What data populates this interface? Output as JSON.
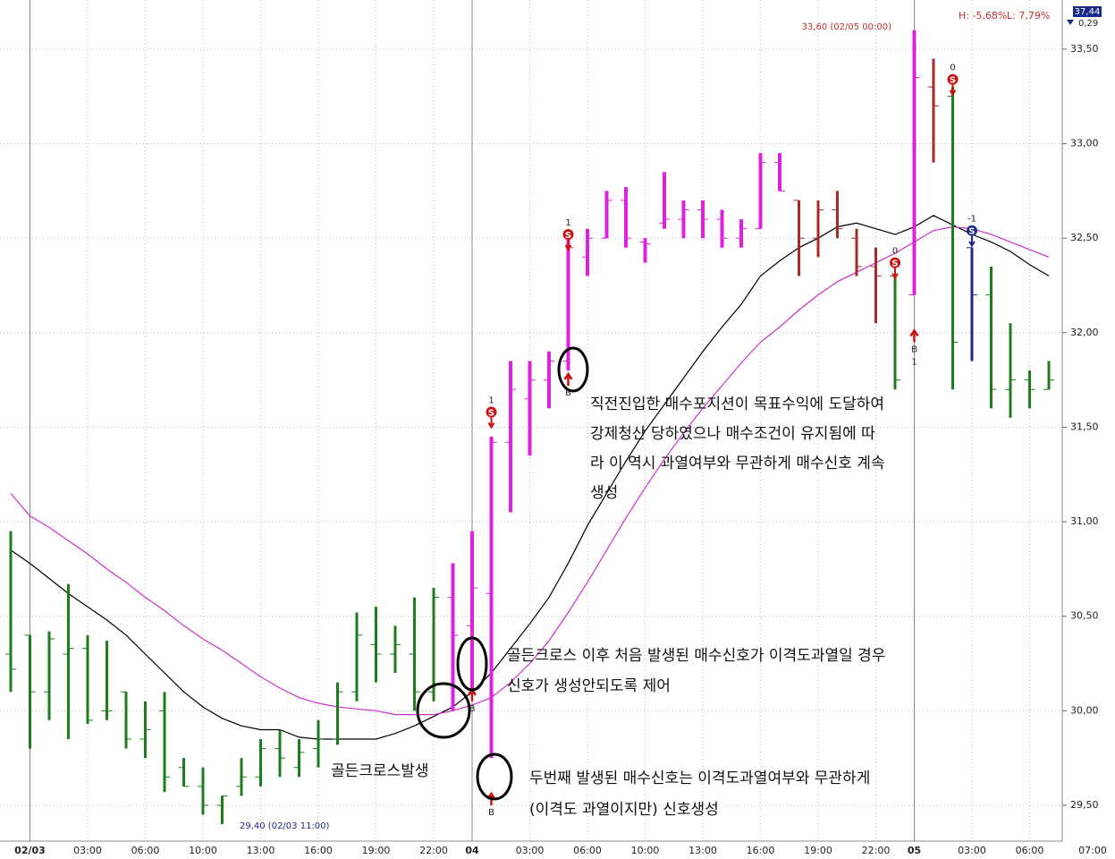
{
  "chart_data": {
    "type": "ohlc",
    "categories": [
      null,
      "02/03",
      null,
      null,
      "03:00",
      null,
      null,
      "06:00",
      null,
      null,
      "10:00",
      null,
      null,
      "13:00",
      null,
      null,
      "16:00",
      null,
      null,
      "19:00",
      null,
      null,
      "22:00",
      null,
      "04",
      null,
      null,
      "03:00",
      null,
      null,
      "06:00",
      null,
      null,
      "10:00",
      null,
      null,
      "13:00",
      null,
      null,
      "16:00",
      null,
      null,
      "19:00",
      null,
      null,
      "22:00",
      null,
      "05",
      null,
      null,
      "03:00",
      null,
      null,
      "06:00",
      null
    ],
    "x_end_label": "07:00",
    "open": [
      30.3,
      30.4,
      30.1,
      30.3,
      30.33,
      30.0,
      30.1,
      29.85,
      30.0,
      29.7,
      29.6,
      29.5,
      29.6,
      29.65,
      29.8,
      29.7,
      29.8,
      29.85,
      30.1,
      30.35,
      30.3,
      30.3,
      30.1,
      30.6,
      30.45,
      30.62,
      31.42,
      31.65,
      31.75,
      31.85,
      32.4,
      32.5,
      32.7,
      32.48,
      32.58,
      32.6,
      32.65,
      32.6,
      32.5,
      32.55,
      32.9,
      32.7,
      32.5,
      32.65,
      32.5,
      32.35,
      32.3,
      32.2,
      33.3,
      33.25,
      32.45,
      32.2,
      31.7,
      31.75,
      31.7
    ],
    "high": [
      30.95,
      30.4,
      30.42,
      30.67,
      30.4,
      30.37,
      30.1,
      30.05,
      30.1,
      29.75,
      29.7,
      29.55,
      29.75,
      29.85,
      29.9,
      29.85,
      29.95,
      30.15,
      30.52,
      30.55,
      30.45,
      30.6,
      30.65,
      30.78,
      30.95,
      31.45,
      31.85,
      31.85,
      31.9,
      32.5,
      32.55,
      32.75,
      32.77,
      32.5,
      32.85,
      32.7,
      32.7,
      32.65,
      32.6,
      32.95,
      32.95,
      32.7,
      32.7,
      32.75,
      32.55,
      32.45,
      32.3,
      33.6,
      33.45,
      33.3,
      32.45,
      32.35,
      32.05,
      31.8,
      31.85
    ],
    "low": [
      30.1,
      29.8,
      29.95,
      29.85,
      29.93,
      29.95,
      29.8,
      29.75,
      29.57,
      29.6,
      29.45,
      29.4,
      29.55,
      29.6,
      29.65,
      29.65,
      29.7,
      29.82,
      30.05,
      30.15,
      30.2,
      30.0,
      30.05,
      30.0,
      30.1,
      29.75,
      31.05,
      31.35,
      31.6,
      31.8,
      32.3,
      32.5,
      32.45,
      32.37,
      32.55,
      32.5,
      32.5,
      32.45,
      32.45,
      32.55,
      32.75,
      32.3,
      32.4,
      32.5,
      32.3,
      32.05,
      31.7,
      32.2,
      32.9,
      31.7,
      31.85,
      31.6,
      31.55,
      31.6,
      31.7
    ],
    "close": [
      30.22,
      30.1,
      30.38,
      30.33,
      29.95,
      30.0,
      29.85,
      29.9,
      29.65,
      29.6,
      29.5,
      29.55,
      29.65,
      29.8,
      29.75,
      29.78,
      29.85,
      30.1,
      30.4,
      30.3,
      30.35,
      30.1,
      30.6,
      30.4,
      30.65,
      31.42,
      31.7,
      31.75,
      31.85,
      32.45,
      32.5,
      32.7,
      32.5,
      32.47,
      32.6,
      32.65,
      32.6,
      32.5,
      32.55,
      32.9,
      32.75,
      32.5,
      32.65,
      32.55,
      32.35,
      32.3,
      31.75,
      33.35,
      33.2,
      31.95,
      32.2,
      31.7,
      31.75,
      31.7,
      31.75
    ],
    "colors": [
      "#1b7d1b",
      "#1b7d1b",
      "#1b7d1b",
      "#1b7d1b",
      "#1b7d1b",
      "#1b7d1b",
      "#1b7d1b",
      "#1b7d1b",
      "#1b7d1b",
      "#1b7d1b",
      "#1b7d1b",
      "#1b7d1b",
      "#1b7d1b",
      "#1b7d1b",
      "#1b7d1b",
      "#1b7d1b",
      "#1b7d1b",
      "#1b7d1b",
      "#1b7d1b",
      "#1b7d1b",
      "#1b7d1b",
      "#1b7d1b",
      "#1b7d1b",
      "#e020e0",
      "#e020e0",
      "#e020e0",
      "#e020e0",
      "#e020e0",
      "#e020e0",
      "#e020e0",
      "#e020e0",
      "#e020e0",
      "#e020e0",
      "#e020e0",
      "#e020e0",
      "#e020e0",
      "#e020e0",
      "#e020e0",
      "#e020e0",
      "#e020e0",
      "#e020e0",
      "#a52a2a",
      "#a52a2a",
      "#a52a2a",
      "#a52a2a",
      "#a52a2a",
      "#1b7d1b",
      "#e020e0",
      "#a52a2a",
      "#1b7d1b",
      "#1a2a8a",
      "#1b7d1b",
      "#1b7d1b",
      "#1b7d1b",
      "#1b7d1b"
    ],
    "series": [
      {
        "color": "#000000",
        "values": [
          30.85,
          30.78,
          30.7,
          30.62,
          30.55,
          30.48,
          30.4,
          30.3,
          30.2,
          30.1,
          30.02,
          29.96,
          29.92,
          29.9,
          29.9,
          29.86,
          29.85,
          29.85,
          29.85,
          29.85,
          29.88,
          29.92,
          29.97,
          30.02,
          30.1,
          30.2,
          30.33,
          30.46,
          30.6,
          30.78,
          30.98,
          31.15,
          31.32,
          31.48,
          31.62,
          31.76,
          31.9,
          32.03,
          32.15,
          32.3,
          32.38,
          32.45,
          32.5,
          32.56,
          32.58,
          32.55,
          32.52,
          32.56,
          32.62,
          32.57,
          32.52,
          32.48,
          32.43,
          32.36,
          32.3
        ]
      },
      {
        "color": "#d030d0",
        "values": [
          31.15,
          31.03,
          30.97,
          30.9,
          30.83,
          30.75,
          30.68,
          30.6,
          30.53,
          30.45,
          30.38,
          30.32,
          30.25,
          30.18,
          30.12,
          30.07,
          30.04,
          30.02,
          30.01,
          30.0,
          29.98,
          29.98,
          29.98,
          30.0,
          30.03,
          30.07,
          30.15,
          30.25,
          30.37,
          30.52,
          30.68,
          30.85,
          31.02,
          31.18,
          31.33,
          31.47,
          31.6,
          31.72,
          31.84,
          31.95,
          32.03,
          32.12,
          32.2,
          32.27,
          32.32,
          32.37,
          32.42,
          32.48,
          32.54,
          32.56,
          32.55,
          32.52,
          32.48,
          32.44,
          32.4
        ]
      }
    ],
    "signals": [
      {
        "index": 24,
        "side": "B",
        "price": 30.05
      },
      {
        "index": 25,
        "side": "S",
        "label": "1",
        "price": 31.58
      },
      {
        "index": 25,
        "side": "B",
        "price": 29.5
      },
      {
        "index": 29,
        "side": "S",
        "label": "1",
        "price": 32.52
      },
      {
        "index": 29,
        "side": "B",
        "price": 31.72
      },
      {
        "index": 46,
        "side": "S",
        "label": "0",
        "price": 32.37
      },
      {
        "index": 47,
        "side": "B",
        "label": "1",
        "price": 31.95
      },
      {
        "index": 49,
        "side": "S",
        "label": "0",
        "price": 33.34
      },
      {
        "index": 50,
        "side": "S",
        "label": "-1",
        "price": 32.54,
        "color": "#1a2a8a"
      }
    ],
    "ylim": [
      29.32,
      33.76
    ],
    "yticks": [
      {
        "value": 29.5,
        "label": "29,50"
      },
      {
        "value": 30.0,
        "label": "30,00"
      },
      {
        "value": 30.5,
        "label": "30,50"
      },
      {
        "value": 31.0,
        "label": "31,00"
      },
      {
        "value": 31.5,
        "label": "31,50"
      },
      {
        "value": 32.0,
        "label": "32,00"
      },
      {
        "value": 32.5,
        "label": "32,50"
      },
      {
        "value": 33.0,
        "label": "33,00"
      },
      {
        "value": 33.5,
        "label": "33,50"
      }
    ],
    "grid": true,
    "high_label": "33,60 (02/05 00:00)",
    "low_label": "29,40 (02/03 11:00)",
    "stats": {
      "h": "H: -5,68%",
      "l": "L: 7,79%",
      "axis_top": "37,44",
      "axis_change": "0,29"
    },
    "annotations": {
      "target": [
        "직전진입한 매수포지션이 목표수익에 도달하여",
        "강제청산 당하였으나 매수조건이 유지됨에 따",
        "라 이 역시 과열여부와 무관하게 매수신호 계속",
        "생성"
      ],
      "first_signal": [
        "골든크로스 이후 처음 발생된 매수신호가 이격도과열일 경우",
        "신호가 생성안되도록 제어"
      ],
      "golden_cross": "골든크로스발생",
      "second_signal": [
        "두번째 발생된 매수신호는 이격도과열여부와 무관하게",
        "(이격도 과열이지만) 신호생성"
      ]
    }
  }
}
